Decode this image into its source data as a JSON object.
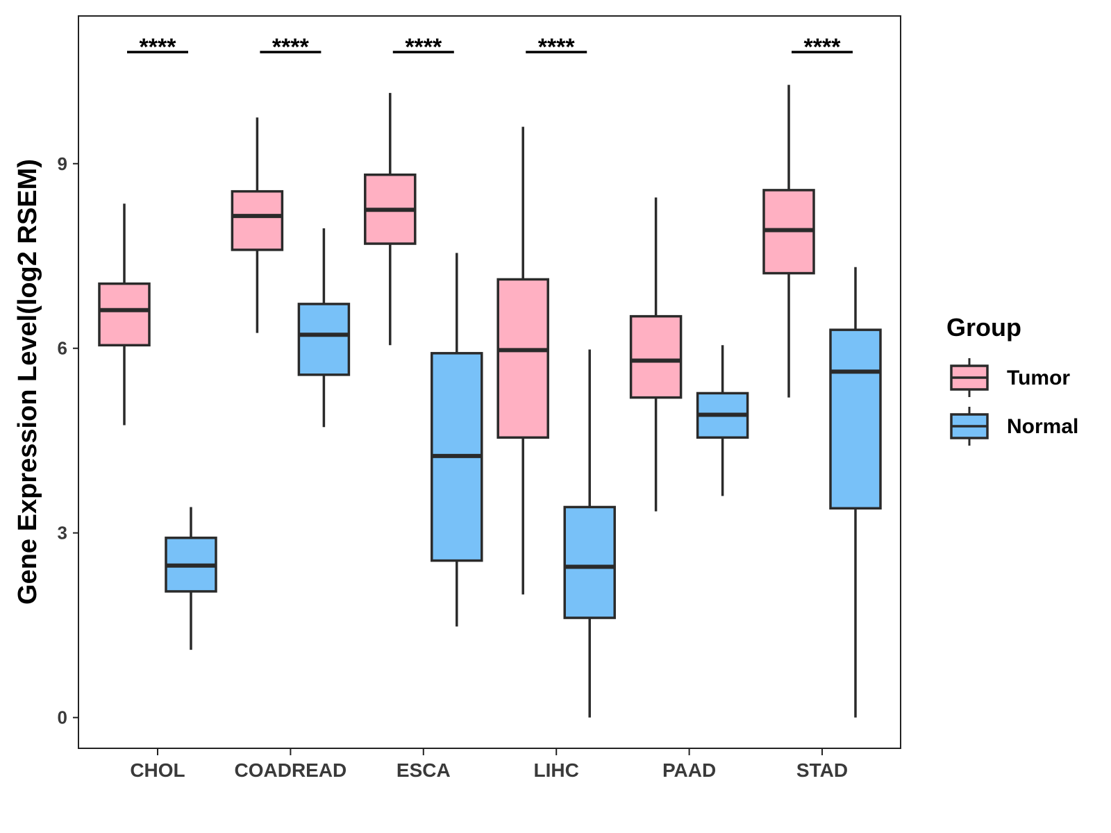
{
  "chart_data": {
    "type": "boxplot",
    "title": "",
    "xlabel": "",
    "ylabel": "Gene Expression Level(log2 RSEM)",
    "ylim": [
      -0.5,
      11.4
    ],
    "yticks": [
      0,
      3,
      6,
      9
    ],
    "categories": [
      "CHOL",
      "COADREAD",
      "ESCA",
      "LIHC",
      "PAAD",
      "STAD"
    ],
    "legend": {
      "title": "Group",
      "position": "right",
      "entries": [
        "Tumor",
        "Normal"
      ]
    },
    "colors": {
      "Tumor": "#FFB0C2",
      "Normal": "#78C1F8",
      "outline": "#2a2a2a"
    },
    "series": [
      {
        "name": "Tumor",
        "boxes": [
          {
            "min": 4.75,
            "q1": 6.05,
            "median": 6.62,
            "q3": 7.05,
            "max": 8.35
          },
          {
            "min": 6.25,
            "q1": 7.6,
            "median": 8.15,
            "q3": 8.55,
            "max": 9.75
          },
          {
            "min": 6.05,
            "q1": 7.7,
            "median": 8.25,
            "q3": 8.82,
            "max": 10.15
          },
          {
            "min": 2.0,
            "q1": 4.55,
            "median": 5.97,
            "q3": 7.12,
            "max": 9.6
          },
          {
            "min": 3.35,
            "q1": 5.2,
            "median": 5.8,
            "q3": 6.52,
            "max": 8.45
          },
          {
            "min": 5.2,
            "q1": 7.22,
            "median": 7.92,
            "q3": 8.57,
            "max": 10.28
          }
        ]
      },
      {
        "name": "Normal",
        "boxes": [
          {
            "min": 1.1,
            "q1": 2.05,
            "median": 2.47,
            "q3": 2.92,
            "max": 3.42
          },
          {
            "min": 4.72,
            "q1": 5.57,
            "median": 6.22,
            "q3": 6.72,
            "max": 7.95
          },
          {
            "min": 1.48,
            "q1": 2.55,
            "median": 4.25,
            "q3": 5.92,
            "max": 7.55
          },
          {
            "min": 0.0,
            "q1": 1.62,
            "median": 2.45,
            "q3": 3.42,
            "max": 5.98
          },
          {
            "min": 3.6,
            "q1": 4.55,
            "median": 4.92,
            "q3": 5.27,
            "max": 6.05
          },
          {
            "min": 0.0,
            "q1": 3.4,
            "median": 5.62,
            "q3": 6.3,
            "max": 7.32
          }
        ]
      }
    ],
    "significance": [
      "****",
      "****",
      "****",
      "****",
      "",
      "****"
    ]
  }
}
